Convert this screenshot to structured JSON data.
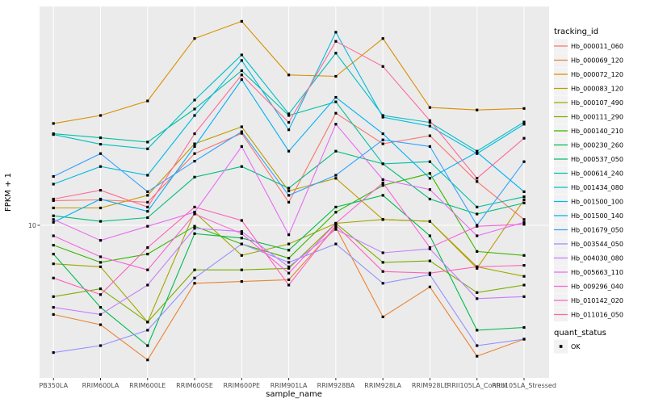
{
  "style": {
    "background": "#FFFFFF",
    "panel_bg": "#EBEBEB",
    "grid_color": "#FFFFFF",
    "marker_color": "#000000",
    "tick_mark_color": "#333333",
    "tick_label_color": "#4D4D4D",
    "axis_title_color": "#000000",
    "legend_key_bg": "#F2F2F2"
  },
  "chart_data": {
    "type": "line",
    "title": "",
    "xlabel": "sample_name",
    "ylabel": "FPKM + 1",
    "y_scale": "log10",
    "ylim": [
      2.2,
      89
    ],
    "y_ticks": [
      10
    ],
    "y_tick_labels": [
      "10"
    ],
    "grid": "major-only",
    "marker": "black-square",
    "legend_position": "right",
    "categories": [
      "PB350LA",
      "RRIM600LA",
      "RRIM600LE",
      "RRIM600SE",
      "RRIM600PE",
      "RRIM901LA",
      "RRIM928BA",
      "RRIM928LA",
      "RRIM928LE",
      "RRII105LA_Control",
      "RRII105LA_Stressed"
    ],
    "legend": {
      "series_title": "tracking_id",
      "shape_title": "quant_status",
      "shape_items": [
        {
          "label": "OK",
          "marker": "black-square"
        }
      ]
    },
    "series": [
      {
        "name": "Hb_000011_060",
        "color": "#F8766D",
        "values": [
          12.8,
          12.9,
          12.6,
          20.5,
          25.1,
          12.6,
          30.7,
          22.6,
          24.5,
          15.5,
          10.6
        ]
      },
      {
        "name": "Hb_000069_120",
        "color": "#EA8331",
        "values": [
          4.1,
          3.7,
          2.6,
          5.6,
          5.7,
          5.8,
          9.8,
          4.0,
          5.4,
          2.7,
          3.2
        ]
      },
      {
        "name": "Hb_000072_120",
        "color": "#D89000",
        "values": [
          27.7,
          30.0,
          34.7,
          64.8,
          77.0,
          45.0,
          44.4,
          64.8,
          32.5,
          31.7,
          32.2
        ]
      },
      {
        "name": "Hb_000083_120",
        "color": "#C09B00",
        "values": [
          11.9,
          11.9,
          13.5,
          22.6,
          26.8,
          14.1,
          16.0,
          10.6,
          10.4,
          6.5,
          12.9
        ]
      },
      {
        "name": "Hb_000107_490",
        "color": "#A3A500",
        "values": [
          6.8,
          6.6,
          3.8,
          11.4,
          7.4,
          8.3,
          10.2,
          10.6,
          10.4,
          6.6,
          6.0
        ]
      },
      {
        "name": "Hb_000111_290",
        "color": "#7CAE00",
        "values": [
          4.9,
          5.3,
          3.8,
          6.4,
          6.4,
          6.5,
          10.2,
          6.9,
          7.0,
          5.1,
          5.5
        ]
      },
      {
        "name": "Hb_000140_210",
        "color": "#39B600",
        "values": [
          8.2,
          6.9,
          7.5,
          9.9,
          8.3,
          7.2,
          11.4,
          14.9,
          16.8,
          7.7,
          7.4
        ]
      },
      {
        "name": "Hb_000230_260",
        "color": "#00BB4E",
        "values": [
          7.5,
          4.4,
          3.0,
          9.2,
          8.8,
          7.8,
          12.0,
          13.5,
          9.0,
          3.5,
          3.6
        ]
      },
      {
        "name": "Hb_000537_050",
        "color": "#00BF7D",
        "values": [
          11.0,
          10.4,
          10.8,
          16.2,
          18.0,
          14.5,
          21.0,
          18.5,
          13.0,
          11.2,
          12.5
        ]
      },
      {
        "name": "Hb_000614_240",
        "color": "#00C1A3",
        "values": [
          25.0,
          24.0,
          23.0,
          32.0,
          47.0,
          30.0,
          34.4,
          18.5,
          18.9,
          12.0,
          13.3
        ]
      },
      {
        "name": "Hb_001434_080",
        "color": "#00BFC4",
        "values": [
          24.8,
          22.5,
          21.5,
          35.0,
          55.0,
          30.5,
          56.0,
          30.0,
          28.0,
          21.0,
          28.1
        ]
      },
      {
        "name": "Hb_001500_100",
        "color": "#00BAE0",
        "values": [
          15.1,
          18.0,
          16.5,
          30.0,
          52.0,
          26.0,
          69.0,
          29.5,
          27.0,
          20.5,
          27.5
        ]
      },
      {
        "name": "Hb_001500_140",
        "color": "#00B0F6",
        "values": [
          10.3,
          13.0,
          11.5,
          22.0,
          43.0,
          21.0,
          36.0,
          25.0,
          16.0,
          20.8,
          14.0
        ]
      },
      {
        "name": "Hb_001679_050",
        "color": "#35A2FF",
        "values": [
          16.3,
          20.5,
          14.0,
          19.0,
          25.5,
          13.5,
          16.5,
          23.5,
          22.0,
          10.0,
          18.9
        ]
      },
      {
        "name": "Hb_003544_050",
        "color": "#9590FF",
        "values": [
          2.8,
          3.0,
          3.5,
          5.9,
          8.3,
          6.9,
          8.3,
          5.6,
          6.1,
          3.0,
          3.2
        ]
      },
      {
        "name": "Hb_004030_080",
        "color": "#C77CFF",
        "values": [
          4.4,
          4.1,
          5.5,
          9.7,
          9.4,
          6.6,
          9.6,
          7.6,
          7.9,
          4.8,
          4.9
        ]
      },
      {
        "name": "Hb_005663_110",
        "color": "#E76BF3",
        "values": [
          10.6,
          8.6,
          9.9,
          11.4,
          22.0,
          9.1,
          27.5,
          15.8,
          14.3,
          9.0,
          10.3
        ]
      },
      {
        "name": "Hb_009296_040",
        "color": "#FA62DB",
        "values": [
          9.0,
          7.3,
          6.4,
          11.2,
          9.2,
          6.2,
          10.2,
          15.3,
          8.0,
          9.9,
          10.1
        ]
      },
      {
        "name": "Hb_010142_020",
        "color": "#FF62BC",
        "values": [
          5.9,
          5.0,
          8.0,
          12.0,
          10.5,
          5.5,
          10.0,
          6.3,
          6.2,
          6.6,
          6.7
        ]
      },
      {
        "name": "Hb_011016_050",
        "color": "#FF6A98",
        "values": [
          13.0,
          14.2,
          12.0,
          25.0,
          45.0,
          28.0,
          63.0,
          49.0,
          28.5,
          16.0,
          23.9
        ]
      }
    ]
  }
}
